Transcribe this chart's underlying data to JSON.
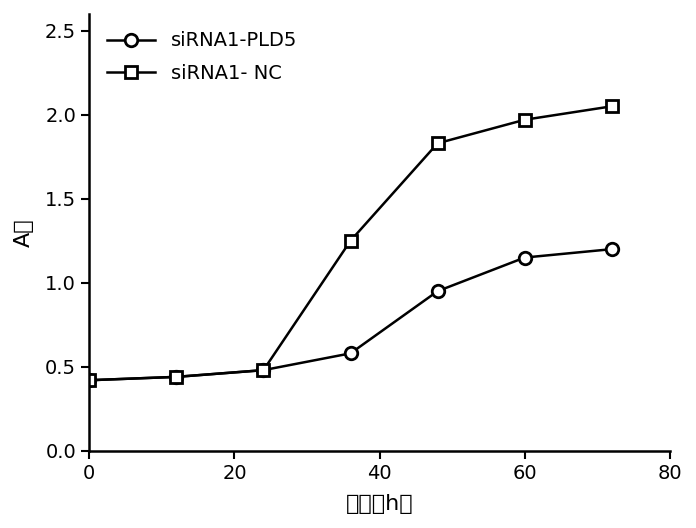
{
  "series1_label": "siRNA1-PLD5",
  "series2_label": "siRNA1- NC",
  "x": [
    0,
    12,
    24,
    36,
    48,
    60,
    72
  ],
  "y_pld5": [
    0.42,
    0.44,
    0.48,
    0.58,
    0.95,
    1.15,
    1.2
  ],
  "y_nc": [
    0.42,
    0.44,
    0.48,
    1.25,
    1.83,
    1.97,
    2.05
  ],
  "xlabel": "时间（h）",
  "ylabel": "A値",
  "xlim": [
    0,
    80
  ],
  "ylim": [
    0.0,
    2.6
  ],
  "xticks": [
    0,
    20,
    40,
    60,
    80
  ],
  "yticks": [
    0.0,
    0.5,
    1.0,
    1.5,
    2.0,
    2.5
  ],
  "line_color": "#000000",
  "marker_circle": "o",
  "marker_square": "s",
  "markersize": 9,
  "linewidth": 1.8,
  "axis_label_fontsize": 16,
  "tick_fontsize": 14,
  "legend_fontsize": 14,
  "background_color": "#ffffff"
}
